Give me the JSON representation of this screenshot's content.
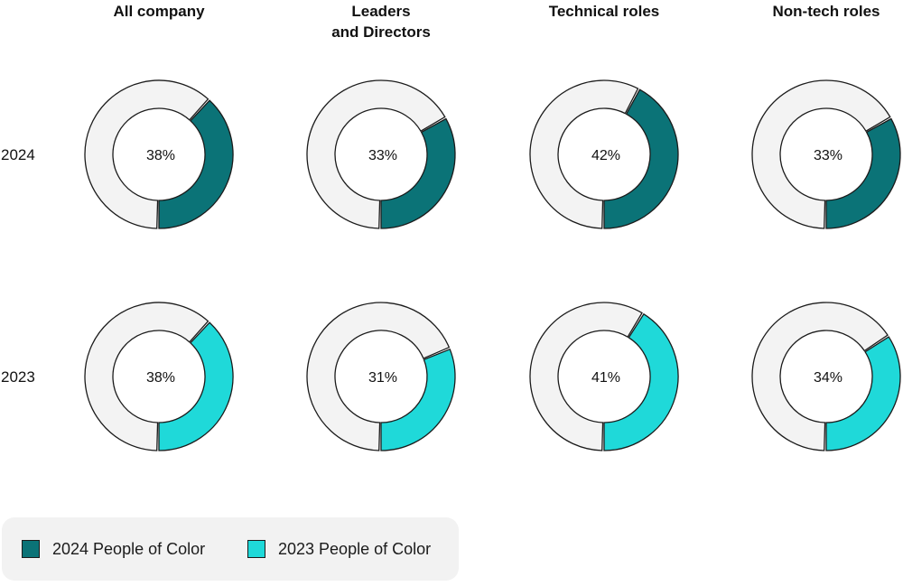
{
  "chart_data": {
    "type": "donut-grid",
    "columns": [
      {
        "label_lines": [
          "All company"
        ]
      },
      {
        "label_lines": [
          "Leaders",
          "and Directors"
        ]
      },
      {
        "label_lines": [
          "Technical roles"
        ]
      },
      {
        "label_lines": [
          "Non-tech roles"
        ]
      }
    ],
    "rows": [
      {
        "label": "2024",
        "series": "2024 People of Color",
        "values": [
          38,
          33,
          42,
          33
        ],
        "labels": [
          "38%",
          "33%",
          "42%",
          "33%"
        ]
      },
      {
        "label": "2023",
        "series": "2023 People of Color",
        "values": [
          38,
          31,
          41,
          34
        ],
        "labels": [
          "38%",
          "31%",
          "41%",
          "34%"
        ]
      }
    ],
    "legend": [
      {
        "name": "2024 People of Color",
        "color": "#0b7377"
      },
      {
        "name": "2023 People of Color",
        "color": "#1fd9d9"
      }
    ],
    "remainder_color": "#f3f3f3",
    "stroke_color": "#1b1b1b"
  }
}
